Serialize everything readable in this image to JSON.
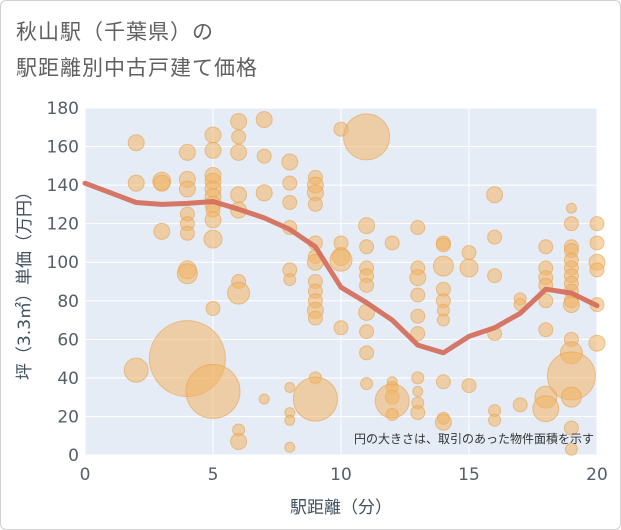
{
  "colors": {
    "plot_bg": "#e5ecf6",
    "grid": "#ffffff",
    "bubble_fill": "#f3b564",
    "bubble_stroke": "#e8a24e",
    "line": "#d4705e"
  },
  "title_lines": [
    "秋山駅（千葉県）の",
    "駅距離別中古戸建て価格"
  ],
  "chart_data": {
    "type": "scatter",
    "title": "秋山駅（千葉県）の駅距離別中古戸建て価格",
    "xlabel": "駅距離（分）",
    "ylabel": "坪（3.3㎡）単価（万円）",
    "xlim": [
      0,
      20
    ],
    "ylim": [
      0,
      180
    ],
    "x_ticks": [
      0,
      5,
      10,
      15,
      20
    ],
    "y_ticks": [
      0,
      20,
      40,
      60,
      80,
      100,
      120,
      140,
      160,
      180
    ],
    "annotation": "円の大きさは、取引のあった物件面積を示す",
    "bubbles": [
      {
        "x": 2,
        "y": 162,
        "s": 8
      },
      {
        "x": 2,
        "y": 141,
        "s": 8
      },
      {
        "x": 2,
        "y": 44,
        "s": 12
      },
      {
        "x": 3,
        "y": 142,
        "s": 9
      },
      {
        "x": 3,
        "y": 141,
        "s": 8
      },
      {
        "x": 3,
        "y": 116,
        "s": 8
      },
      {
        "x": 4,
        "y": 157,
        "s": 8
      },
      {
        "x": 4,
        "y": 143,
        "s": 8
      },
      {
        "x": 4,
        "y": 138,
        "s": 8
      },
      {
        "x": 4,
        "y": 125,
        "s": 7
      },
      {
        "x": 4,
        "y": 120,
        "s": 7
      },
      {
        "x": 4,
        "y": 115,
        "s": 7
      },
      {
        "x": 4,
        "y": 96,
        "s": 9
      },
      {
        "x": 4,
        "y": 94,
        "s": 10
      },
      {
        "x": 4,
        "y": 50,
        "s": 38
      },
      {
        "x": 5,
        "y": 166,
        "s": 8
      },
      {
        "x": 5,
        "y": 158,
        "s": 8
      },
      {
        "x": 5,
        "y": 145,
        "s": 8
      },
      {
        "x": 5,
        "y": 142,
        "s": 8
      },
      {
        "x": 5,
        "y": 138,
        "s": 8
      },
      {
        "x": 5,
        "y": 134,
        "s": 8
      },
      {
        "x": 5,
        "y": 130,
        "s": 8
      },
      {
        "x": 5,
        "y": 127,
        "s": 7
      },
      {
        "x": 5,
        "y": 122,
        "s": 8
      },
      {
        "x": 5,
        "y": 112,
        "s": 9
      },
      {
        "x": 5,
        "y": 76,
        "s": 7
      },
      {
        "x": 5,
        "y": 33,
        "s": 27
      },
      {
        "x": 6,
        "y": 173,
        "s": 8
      },
      {
        "x": 6,
        "y": 165,
        "s": 7
      },
      {
        "x": 6,
        "y": 157,
        "s": 8
      },
      {
        "x": 6,
        "y": 135,
        "s": 8
      },
      {
        "x": 6,
        "y": 127,
        "s": 8
      },
      {
        "x": 6,
        "y": 90,
        "s": 7
      },
      {
        "x": 6,
        "y": 84,
        "s": 11
      },
      {
        "x": 6,
        "y": 13,
        "s": 6
      },
      {
        "x": 6,
        "y": 7,
        "s": 8
      },
      {
        "x": 7,
        "y": 174,
        "s": 8
      },
      {
        "x": 7,
        "y": 155,
        "s": 7
      },
      {
        "x": 7,
        "y": 136,
        "s": 8
      },
      {
        "x": 7,
        "y": 29,
        "s": 5
      },
      {
        "x": 8,
        "y": 152,
        "s": 8
      },
      {
        "x": 8,
        "y": 141,
        "s": 7
      },
      {
        "x": 8,
        "y": 131,
        "s": 7
      },
      {
        "x": 8,
        "y": 118,
        "s": 7
      },
      {
        "x": 8,
        "y": 96,
        "s": 7
      },
      {
        "x": 8,
        "y": 91,
        "s": 6
      },
      {
        "x": 8,
        "y": 35,
        "s": 5
      },
      {
        "x": 8,
        "y": 22,
        "s": 5
      },
      {
        "x": 8,
        "y": 18,
        "s": 5
      },
      {
        "x": 8,
        "y": 4,
        "s": 5
      },
      {
        "x": 9,
        "y": 144,
        "s": 7
      },
      {
        "x": 9,
        "y": 140,
        "s": 8
      },
      {
        "x": 9,
        "y": 136,
        "s": 8
      },
      {
        "x": 9,
        "y": 130,
        "s": 7
      },
      {
        "x": 9,
        "y": 110,
        "s": 7
      },
      {
        "x": 9,
        "y": 103,
        "s": 7
      },
      {
        "x": 9,
        "y": 100,
        "s": 8
      },
      {
        "x": 9,
        "y": 90,
        "s": 7
      },
      {
        "x": 9,
        "y": 85,
        "s": 7
      },
      {
        "x": 9,
        "y": 80,
        "s": 7
      },
      {
        "x": 9,
        "y": 75,
        "s": 8
      },
      {
        "x": 9,
        "y": 71,
        "s": 7
      },
      {
        "x": 9,
        "y": 40,
        "s": 6
      },
      {
        "x": 9,
        "y": 29,
        "s": 22
      },
      {
        "x": 10,
        "y": 169,
        "s": 7
      },
      {
        "x": 10,
        "y": 110,
        "s": 7
      },
      {
        "x": 10,
        "y": 103,
        "s": 9
      },
      {
        "x": 10,
        "y": 101,
        "s": 11
      },
      {
        "x": 10,
        "y": 66,
        "s": 7
      },
      {
        "x": 11,
        "y": 165,
        "s": 23
      },
      {
        "x": 11,
        "y": 119,
        "s": 8
      },
      {
        "x": 11,
        "y": 108,
        "s": 7
      },
      {
        "x": 11,
        "y": 97,
        "s": 7
      },
      {
        "x": 11,
        "y": 93,
        "s": 7
      },
      {
        "x": 11,
        "y": 88,
        "s": 7
      },
      {
        "x": 11,
        "y": 74,
        "s": 8
      },
      {
        "x": 11,
        "y": 64,
        "s": 7
      },
      {
        "x": 11,
        "y": 53,
        "s": 7
      },
      {
        "x": 11,
        "y": 37,
        "s": 6
      },
      {
        "x": 12,
        "y": 110,
        "s": 7
      },
      {
        "x": 12,
        "y": 38,
        "s": 5
      },
      {
        "x": 12,
        "y": 35,
        "s": 6
      },
      {
        "x": 12,
        "y": 30,
        "s": 7
      },
      {
        "x": 12,
        "y": 28,
        "s": 17
      },
      {
        "x": 12,
        "y": 21,
        "s": 6
      },
      {
        "x": 13,
        "y": 118,
        "s": 7
      },
      {
        "x": 13,
        "y": 97,
        "s": 7
      },
      {
        "x": 13,
        "y": 92,
        "s": 8
      },
      {
        "x": 13,
        "y": 83,
        "s": 7
      },
      {
        "x": 13,
        "y": 72,
        "s": 7
      },
      {
        "x": 13,
        "y": 63,
        "s": 7
      },
      {
        "x": 13,
        "y": 40,
        "s": 6
      },
      {
        "x": 13,
        "y": 33,
        "s": 5
      },
      {
        "x": 13,
        "y": 27,
        "s": 6
      },
      {
        "x": 13,
        "y": 22,
        "s": 7
      },
      {
        "x": 14,
        "y": 110,
        "s": 7
      },
      {
        "x": 14,
        "y": 109,
        "s": 7
      },
      {
        "x": 14,
        "y": 98,
        "s": 10
      },
      {
        "x": 14,
        "y": 86,
        "s": 7
      },
      {
        "x": 14,
        "y": 80,
        "s": 7
      },
      {
        "x": 14,
        "y": 75,
        "s": 6
      },
      {
        "x": 14,
        "y": 70,
        "s": 6
      },
      {
        "x": 14,
        "y": 38,
        "s": 7
      },
      {
        "x": 14,
        "y": 19,
        "s": 6
      },
      {
        "x": 14,
        "y": 17,
        "s": 8
      },
      {
        "x": 15,
        "y": 105,
        "s": 7
      },
      {
        "x": 15,
        "y": 97,
        "s": 9
      },
      {
        "x": 15,
        "y": 36,
        "s": 7
      },
      {
        "x": 16,
        "y": 135,
        "s": 8
      },
      {
        "x": 16,
        "y": 113,
        "s": 7
      },
      {
        "x": 16,
        "y": 93,
        "s": 7
      },
      {
        "x": 16,
        "y": 63,
        "s": 7
      },
      {
        "x": 16,
        "y": 23,
        "s": 6
      },
      {
        "x": 16,
        "y": 18,
        "s": 6
      },
      {
        "x": 17,
        "y": 81,
        "s": 6
      },
      {
        "x": 17,
        "y": 78,
        "s": 6
      },
      {
        "x": 17,
        "y": 26,
        "s": 7
      },
      {
        "x": 18,
        "y": 108,
        "s": 7
      },
      {
        "x": 18,
        "y": 97,
        "s": 7
      },
      {
        "x": 18,
        "y": 92,
        "s": 7
      },
      {
        "x": 18,
        "y": 88,
        "s": 7
      },
      {
        "x": 18,
        "y": 80,
        "s": 7
      },
      {
        "x": 18,
        "y": 65,
        "s": 7
      },
      {
        "x": 18,
        "y": 30,
        "s": 11
      },
      {
        "x": 18,
        "y": 24,
        "s": 13
      },
      {
        "x": 19,
        "y": 128,
        "s": 5
      },
      {
        "x": 19,
        "y": 120,
        "s": 7
      },
      {
        "x": 19,
        "y": 108,
        "s": 7
      },
      {
        "x": 19,
        "y": 106,
        "s": 7
      },
      {
        "x": 19,
        "y": 101,
        "s": 7
      },
      {
        "x": 19,
        "y": 97,
        "s": 7
      },
      {
        "x": 19,
        "y": 93,
        "s": 7
      },
      {
        "x": 19,
        "y": 89,
        "s": 7
      },
      {
        "x": 19,
        "y": 85,
        "s": 7
      },
      {
        "x": 19,
        "y": 80,
        "s": 7
      },
      {
        "x": 19,
        "y": 78,
        "s": 8
      },
      {
        "x": 19,
        "y": 60,
        "s": 7
      },
      {
        "x": 19,
        "y": 53,
        "s": 11
      },
      {
        "x": 19,
        "y": 41,
        "s": 24
      },
      {
        "x": 19,
        "y": 30,
        "s": 10
      },
      {
        "x": 19,
        "y": 14,
        "s": 7
      },
      {
        "x": 19,
        "y": 3,
        "s": 6
      },
      {
        "x": 20,
        "y": 120,
        "s": 7
      },
      {
        "x": 20,
        "y": 110,
        "s": 7
      },
      {
        "x": 20,
        "y": 100,
        "s": 8
      },
      {
        "x": 20,
        "y": 96,
        "s": 7
      },
      {
        "x": 20,
        "y": 78,
        "s": 7
      },
      {
        "x": 20,
        "y": 58,
        "s": 8
      }
    ],
    "trend": [
      {
        "x": 0,
        "y": 141
      },
      {
        "x": 1,
        "y": 136
      },
      {
        "x": 2,
        "y": 131
      },
      {
        "x": 3,
        "y": 130
      },
      {
        "x": 4,
        "y": 130.5
      },
      {
        "x": 5,
        "y": 131.5
      },
      {
        "x": 6,
        "y": 127.5
      },
      {
        "x": 7,
        "y": 123
      },
      {
        "x": 8,
        "y": 117
      },
      {
        "x": 9,
        "y": 108
      },
      {
        "x": 10,
        "y": 87
      },
      {
        "x": 11,
        "y": 79
      },
      {
        "x": 12,
        "y": 70
      },
      {
        "x": 13,
        "y": 57
      },
      {
        "x": 14,
        "y": 53
      },
      {
        "x": 15,
        "y": 61.5
      },
      {
        "x": 16,
        "y": 66
      },
      {
        "x": 17,
        "y": 73.5
      },
      {
        "x": 18,
        "y": 86
      },
      {
        "x": 19,
        "y": 84
      },
      {
        "x": 20,
        "y": 77.5
      }
    ]
  }
}
